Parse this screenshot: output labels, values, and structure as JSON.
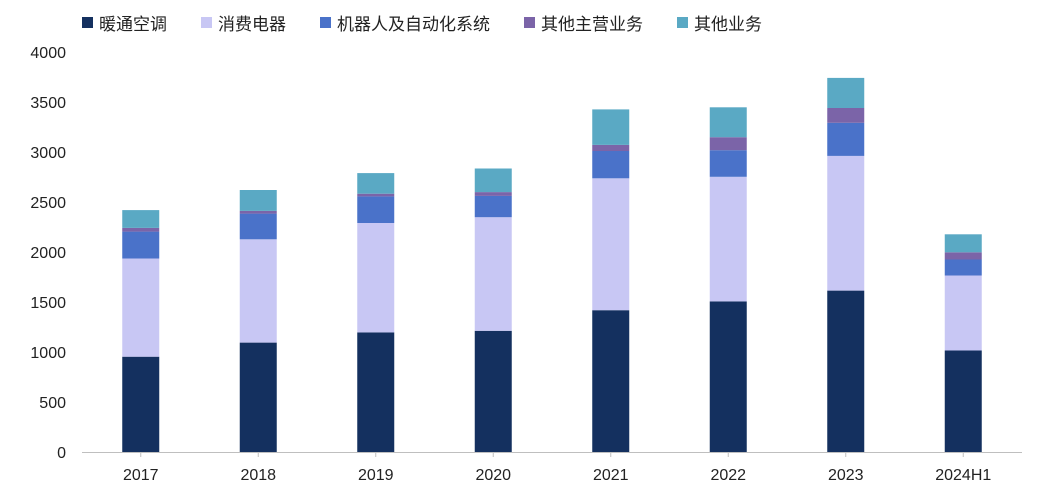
{
  "chart_data": {
    "type": "bar",
    "stacked": true,
    "title": "",
    "xlabel": "",
    "ylabel": "",
    "ylim": [
      0,
      4000
    ],
    "yticks": [
      0,
      500,
      1000,
      1500,
      2000,
      2500,
      3000,
      3500,
      4000
    ],
    "grid": false,
    "legend_position": "top",
    "categories": [
      "2017",
      "2018",
      "2019",
      "2020",
      "2021",
      "2022",
      "2023",
      "2024H1"
    ],
    "series": [
      {
        "name": "暖通空调",
        "color": "#14305f",
        "values": [
          953,
          1094,
          1196,
          1212,
          1418,
          1506,
          1614,
          1015
        ]
      },
      {
        "name": "消费电器",
        "color": "#c8c7f4",
        "values": [
          982,
          1033,
          1094,
          1136,
          1319,
          1246,
          1347,
          750
        ]
      },
      {
        "name": "机器人及自动化系统",
        "color": "#4a72c9",
        "values": [
          269,
          257,
          266,
          213,
          273,
          266,
          331,
          160
        ]
      },
      {
        "name": "其他主营业务",
        "color": "#7b64a8",
        "values": [
          37,
          27,
          27,
          38,
          61,
          130,
          148,
          72
        ]
      },
      {
        "name": "其他业务",
        "color": "#5aa9c4",
        "values": [
          178,
          209,
          206,
          236,
          355,
          299,
          301,
          180
        ]
      }
    ]
  }
}
